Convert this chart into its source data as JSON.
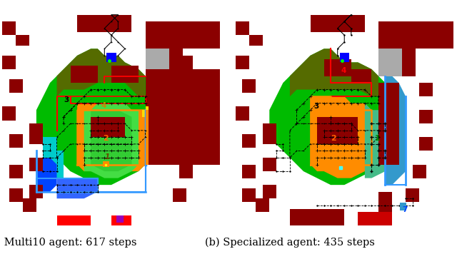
{
  "caption_a": "(a) Multi10 agent: 617 steps",
  "caption_b": "(b) Specialized agent: 435 steps",
  "fig_width": 6.4,
  "fig_height": 3.56,
  "dpi": 100,
  "caption_fontsize": 10.5,
  "background_color": "#ffffff",
  "gray_bg": "#888888",
  "dark_red": "#8B0000",
  "green_bright": "#00BB00",
  "green_dark": "#006600",
  "green_mid": "#228B22",
  "orange": "#FF8C00",
  "blue": "#0044FF",
  "blue_light": "#4499FF",
  "cyan": "#00CCCC",
  "red": "#FF0000",
  "white": "#FFFFFF",
  "purple": "#9900BB",
  "gray_light": "#AAAAAA",
  "dark_brown": "#5B0000"
}
